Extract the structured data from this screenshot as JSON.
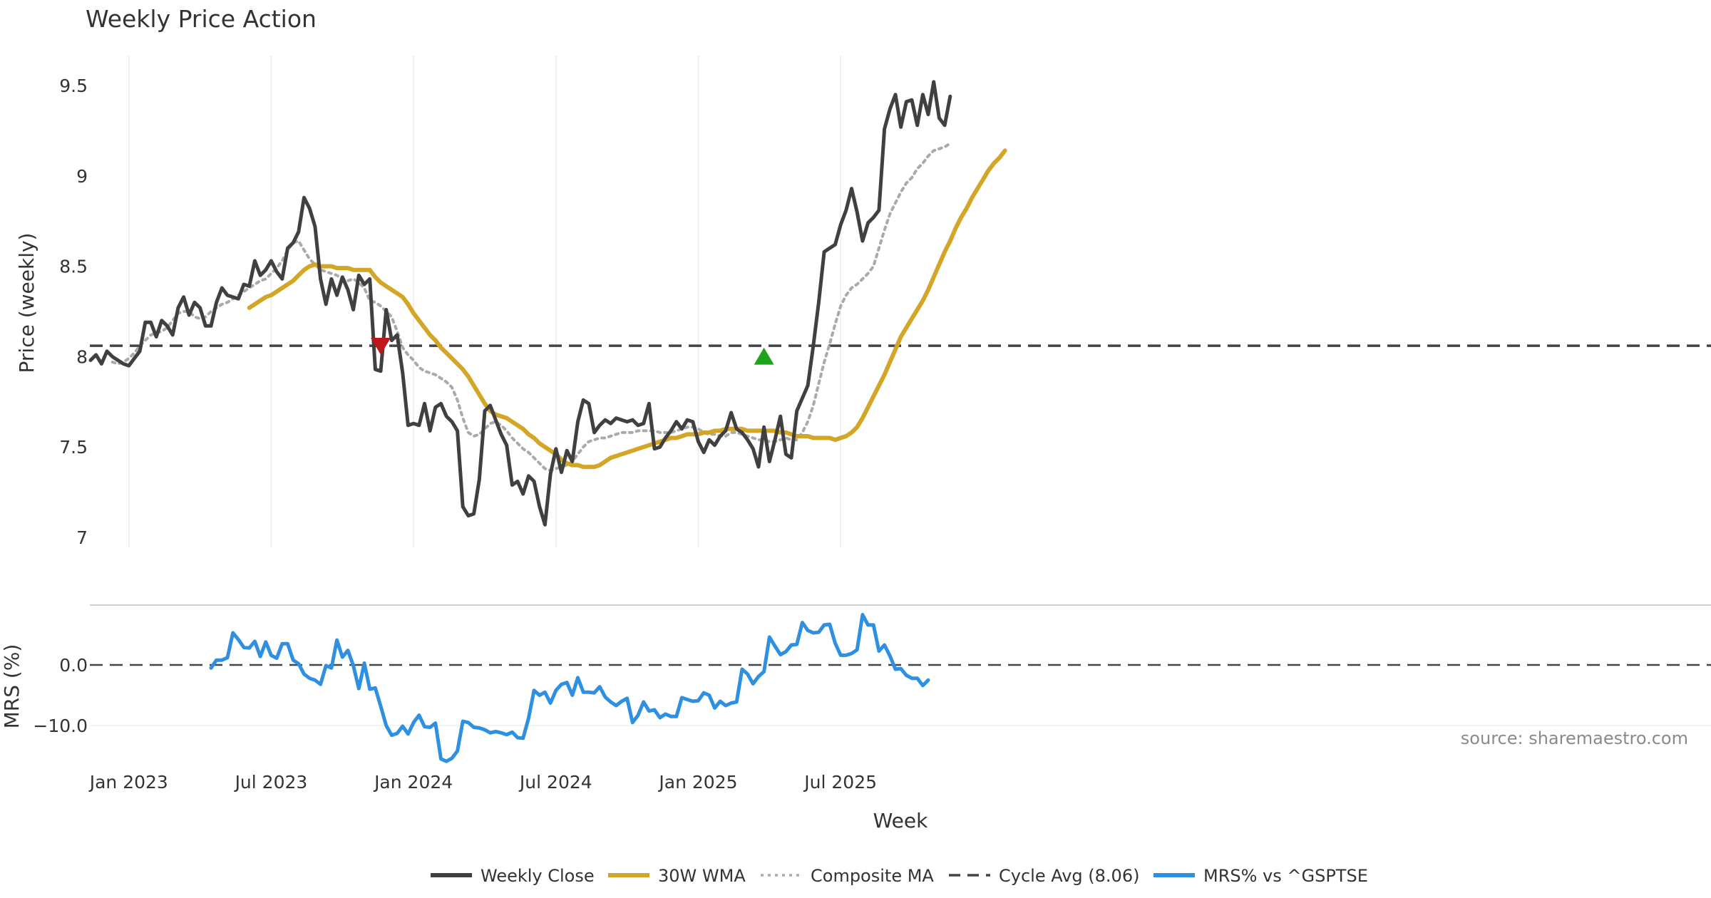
{
  "chart_data": {
    "type": "line",
    "title": "Weekly Price Action",
    "xlabel": "Week",
    "x_ticks": [
      "Jan 2023",
      "Jul 2023",
      "Jan 2024",
      "Jul 2024",
      "Jan 2025",
      "Jul 2025"
    ],
    "price_panel": {
      "ylabel": "Price (weekly)",
      "ylim": [
        6.95,
        9.6
      ],
      "y_ticks": [
        7,
        7.5,
        8,
        8.5,
        9,
        9.5
      ],
      "y_tick_labels": [
        "7",
        "7.5",
        "8",
        "8.5",
        "9",
        "9.5"
      ],
      "series": [
        {
          "name": "Weekly Close",
          "color": "#404040",
          "style": "solid",
          "start_week": 0,
          "values": [
            7.98,
            8.01,
            7.96,
            8.03,
            8.0,
            7.98,
            7.96,
            7.95,
            7.99,
            8.03,
            8.19,
            8.19,
            8.11,
            8.2,
            8.17,
            8.12,
            8.27,
            8.33,
            8.23,
            8.3,
            8.27,
            8.17,
            8.17,
            8.3,
            8.38,
            8.34,
            8.33,
            8.32,
            8.4,
            8.39,
            8.53,
            8.45,
            8.48,
            8.53,
            8.47,
            8.43,
            8.6,
            8.63,
            8.69,
            8.88,
            8.82,
            8.72,
            8.43,
            8.29,
            8.43,
            8.34,
            8.44,
            8.37,
            8.26,
            8.45,
            8.4,
            8.43,
            7.93,
            7.92,
            8.26,
            8.09,
            8.12,
            7.91,
            7.62,
            7.63,
            7.62,
            7.74,
            7.59,
            7.72,
            7.74,
            7.67,
            7.64,
            7.59,
            7.17,
            7.12,
            7.13,
            7.32,
            7.7,
            7.73,
            7.65,
            7.57,
            7.51,
            7.29,
            7.31,
            7.24,
            7.34,
            7.31,
            7.17,
            7.07,
            7.35,
            7.49,
            7.36,
            7.48,
            7.42,
            7.64,
            7.76,
            7.74,
            7.58,
            7.62,
            7.65,
            7.63,
            7.66,
            7.65,
            7.64,
            7.65,
            7.62,
            7.63,
            7.74,
            7.49,
            7.5,
            7.55,
            7.59,
            7.64,
            7.6,
            7.65,
            7.64,
            7.53,
            7.47,
            7.54,
            7.51,
            7.56,
            7.59,
            7.69,
            7.6,
            7.58,
            7.54,
            7.49,
            7.39,
            7.61,
            7.42,
            7.54,
            7.67,
            7.46,
            7.44,
            7.7,
            7.77,
            7.84,
            8.06,
            8.3,
            8.58,
            8.6,
            8.62,
            8.73,
            8.81,
            8.93,
            8.8,
            8.64,
            8.74,
            8.77,
            8.81,
            9.26,
            9.37,
            9.45,
            9.27,
            9.41,
            9.42,
            9.28,
            9.45,
            9.34,
            9.52,
            9.32,
            9.28,
            9.44
          ]
        },
        {
          "name": "30W WMA",
          "color": "#d4a628",
          "style": "solid",
          "start_week": 29,
          "values": [
            8.27,
            8.29,
            8.31,
            8.33,
            8.34,
            8.36,
            8.38,
            8.4,
            8.42,
            8.45,
            8.48,
            8.5,
            8.51,
            8.5,
            8.5,
            8.5,
            8.49,
            8.49,
            8.49,
            8.48,
            8.48,
            8.48,
            8.48,
            8.44,
            8.41,
            8.39,
            8.37,
            8.35,
            8.33,
            8.29,
            8.24,
            8.2,
            8.16,
            8.12,
            8.09,
            8.05,
            8.02,
            7.99,
            7.96,
            7.93,
            7.89,
            7.84,
            7.79,
            7.74,
            7.7,
            7.68,
            7.67,
            7.66,
            7.64,
            7.62,
            7.6,
            7.57,
            7.55,
            7.52,
            7.5,
            7.48,
            7.46,
            7.43,
            7.41,
            7.4,
            7.4,
            7.39,
            7.39,
            7.39,
            7.4,
            7.42,
            7.44,
            7.45,
            7.46,
            7.47,
            7.48,
            7.49,
            7.5,
            7.51,
            7.52,
            7.53,
            7.54,
            7.55,
            7.55,
            7.56,
            7.57,
            7.57,
            7.57,
            7.58,
            7.58,
            7.59,
            7.59,
            7.6,
            7.6,
            7.6,
            7.6,
            7.59,
            7.59,
            7.59,
            7.59,
            7.59,
            7.59,
            7.58,
            7.58,
            7.57,
            7.56,
            7.56,
            7.56,
            7.55,
            7.55,
            7.55,
            7.55,
            7.54,
            7.55,
            7.56,
            7.58,
            7.61,
            7.66,
            7.72,
            7.78,
            7.84,
            7.9,
            7.97,
            8.04,
            8.11,
            8.16,
            8.21,
            8.26,
            8.31,
            8.37,
            8.44,
            8.51,
            8.58,
            8.64,
            8.71,
            8.77,
            8.82,
            8.88,
            8.93,
            8.98,
            9.03,
            9.07,
            9.1,
            9.14
          ]
        },
        {
          "name": "Composite MA",
          "color": "#aaaaaa",
          "style": "dotted",
          "start_week": 4,
          "values": [
            7.97,
            7.96,
            7.97,
            7.99,
            8.02,
            8.06,
            8.09,
            8.12,
            8.13,
            8.14,
            8.16,
            8.2,
            8.24,
            8.25,
            8.25,
            8.22,
            8.21,
            8.22,
            8.25,
            8.27,
            8.29,
            8.3,
            8.32,
            8.34,
            8.36,
            8.38,
            8.4,
            8.42,
            8.43,
            8.46,
            8.49,
            8.53,
            8.59,
            8.63,
            8.64,
            8.59,
            8.54,
            8.51,
            8.48,
            8.47,
            8.46,
            8.45,
            8.43,
            8.42,
            8.43,
            8.41,
            8.38,
            8.31,
            8.3,
            8.28,
            8.25,
            8.22,
            8.14,
            8.05,
            8.01,
            7.98,
            7.94,
            7.92,
            7.91,
            7.9,
            7.88,
            7.86,
            7.83,
            7.76,
            7.66,
            7.58,
            7.56,
            7.57,
            7.6,
            7.63,
            7.64,
            7.62,
            7.59,
            7.55,
            7.52,
            7.49,
            7.47,
            7.44,
            7.41,
            7.38,
            7.37,
            7.38,
            7.39,
            7.4,
            7.42,
            7.46,
            7.5,
            7.53,
            7.54,
            7.55,
            7.55,
            7.56,
            7.57,
            7.58,
            7.58,
            7.58,
            7.59,
            7.59,
            7.59,
            7.59,
            7.58,
            7.58,
            7.58,
            7.59,
            7.6,
            7.61,
            7.61,
            7.6,
            7.58,
            7.57,
            7.57,
            7.56,
            7.56,
            7.58,
            7.58,
            7.57,
            7.56,
            7.55,
            7.54,
            7.54,
            7.53,
            7.53,
            7.54,
            7.55,
            7.54,
            7.54,
            7.58,
            7.64,
            7.73,
            7.85,
            7.97,
            8.07,
            8.18,
            8.28,
            8.34,
            8.38,
            8.4,
            8.43,
            8.46,
            8.5,
            8.6,
            8.7,
            8.79,
            8.85,
            8.91,
            8.96,
            8.99,
            9.04,
            9.07,
            9.11,
            9.14,
            9.15,
            9.16,
            9.18
          ]
        },
        {
          "name": "Cycle Avg (8.06)",
          "color": "#444444",
          "style": "dashed",
          "value": 8.06
        }
      ],
      "markers": [
        {
          "type": "sell",
          "shape": "triangle-down",
          "color": "#c0161b",
          "week": 53,
          "value": 8.06
        },
        {
          "type": "buy",
          "shape": "triangle-up",
          "color": "#1fa31f",
          "week": 123,
          "value": 8.0
        }
      ]
    },
    "mrs_panel": {
      "ylabel": "MRS (%)",
      "ylim": [
        -17,
        8.5
      ],
      "y_ticks": [
        0,
        -10
      ],
      "y_tick_labels": [
        "0.0",
        "−10.0"
      ],
      "series": [
        {
          "name": "MRS% vs ^GSPTSE",
          "color": "#2f8fe0",
          "style": "solid",
          "start_week": 22,
          "values": [
            -0.5,
            0.8,
            0.8,
            1.2,
            5.3,
            4.2,
            2.9,
            2.8,
            3.9,
            1.4,
            3.8,
            1.6,
            1.1,
            3.5,
            3.5,
            0.8,
            0.2,
            -1.5,
            -2.2,
            -2.5,
            -3.2,
            -0.1,
            -0.5,
            4.1,
            1.3,
            2.4,
            -0.1,
            -3.9,
            0.3,
            -4.0,
            -3.8,
            -6.8,
            -10.0,
            -11.6,
            -11.3,
            -10.1,
            -11.4,
            -9.5,
            -8.3,
            -10.2,
            -10.3,
            -9.6,
            -15.5,
            -15.9,
            -15.4,
            -14.2,
            -9.3,
            -9.5,
            -10.3,
            -10.4,
            -10.7,
            -11.2,
            -11.0,
            -11.2,
            -11.5,
            -11.1,
            -12.0,
            -12.1,
            -8.8,
            -4.2,
            -5.0,
            -4.5,
            -6.3,
            -4.2,
            -3.2,
            -2.9,
            -5.0,
            -2.1,
            -4.5,
            -4.5,
            -4.6,
            -3.6,
            -5.3,
            -6.1,
            -6.7,
            -6.0,
            -5.5,
            -9.5,
            -8.3,
            -6.1,
            -7.6,
            -7.4,
            -8.7,
            -8.1,
            -8.5,
            -8.5,
            -5.4,
            -5.7,
            -6.0,
            -5.9,
            -4.6,
            -5.0,
            -7.1,
            -6.0,
            -6.7,
            -6.3,
            -6.1,
            -0.7,
            -1.5,
            -3.1,
            -1.9,
            -1.1,
            4.6,
            3.1,
            1.7,
            2.2,
            3.3,
            3.4,
            7.0,
            5.7,
            5.3,
            5.4,
            6.6,
            6.7,
            3.6,
            1.6,
            1.6,
            1.9,
            2.5,
            8.3,
            6.6,
            6.6,
            2.3,
            3.3,
            1.5,
            -0.7,
            -0.6,
            -1.7,
            -2.2,
            -2.2,
            -3.4,
            -2.5
          ]
        },
        {
          "name": "zero line",
          "color": "#444444",
          "style": "dashed",
          "value": 0
        }
      ]
    },
    "legend": [
      {
        "label": "Weekly Close",
        "color": "#404040",
        "style": "solid"
      },
      {
        "label": "30W WMA",
        "color": "#d4a628",
        "style": "solid"
      },
      {
        "label": "Composite MA",
        "color": "#aaaaaa",
        "style": "dotted"
      },
      {
        "label": "Cycle Avg (8.06)",
        "color": "#444444",
        "style": "dashed"
      },
      {
        "label": "MRS% vs ^GSPTSE",
        "color": "#2f8fe0",
        "style": "solid"
      }
    ],
    "legend_position": "bottom-center",
    "source_note": "source: sharemaestro.com"
  }
}
